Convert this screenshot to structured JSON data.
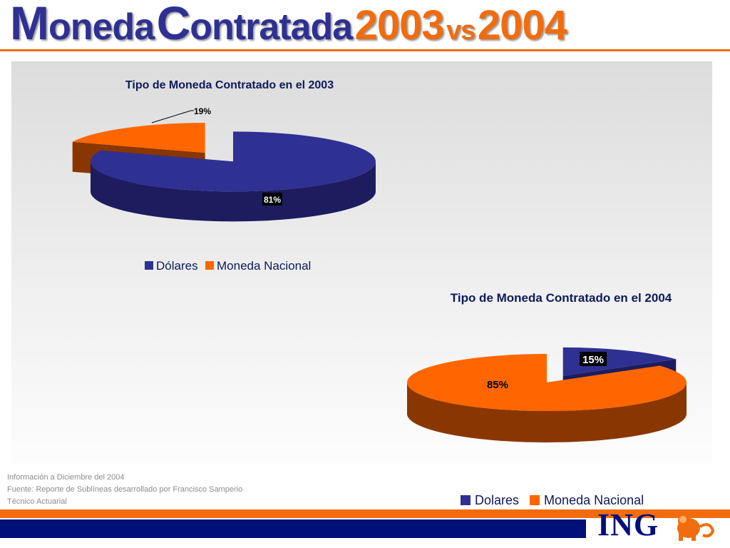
{
  "title": {
    "word1_initial": "M",
    "word1_rest": "oneda",
    "word2_initial": "C",
    "word2_rest": "ontratada",
    "year1": "2003",
    "vs": "vs",
    "year2": "2004"
  },
  "colors": {
    "blue": "#2e3192",
    "blue_dark": "#1c1c5e",
    "orange": "#ff6600",
    "orange_dark": "#8a3600",
    "brand_orange": "#f26c0d",
    "brand_navy": "#00107a"
  },
  "chart_data": [
    {
      "type": "pie",
      "style": "3d-exploded",
      "title": "Tipo de Moneda Contratado en el 2003",
      "categories": [
        "Dólares",
        "Moneda Nacional"
      ],
      "values": [
        81,
        19
      ],
      "labels": [
        "81%",
        "19%"
      ],
      "legend": [
        "Dólares",
        "Moneda Nacional"
      ],
      "legend_position": "bottom"
    },
    {
      "type": "pie",
      "style": "3d-exploded",
      "title": "Tipo de Moneda Contratado en el 2004",
      "categories": [
        "Dolares",
        "Moneda Nacional"
      ],
      "values": [
        15,
        85
      ],
      "labels": [
        "15%",
        "85%"
      ],
      "legend": [
        "Dolares",
        "Moneda Nacional"
      ],
      "legend_position": "bottom"
    }
  ],
  "footnote": {
    "line1": "Información a Diciembre del 2004",
    "line2": "Fuente: Reporte de Sublíneas desarrollado por Francisco Samperio",
    "line3": "Técnico Actuarial"
  },
  "logo": {
    "text": "ING",
    "icon": "lion-icon"
  }
}
